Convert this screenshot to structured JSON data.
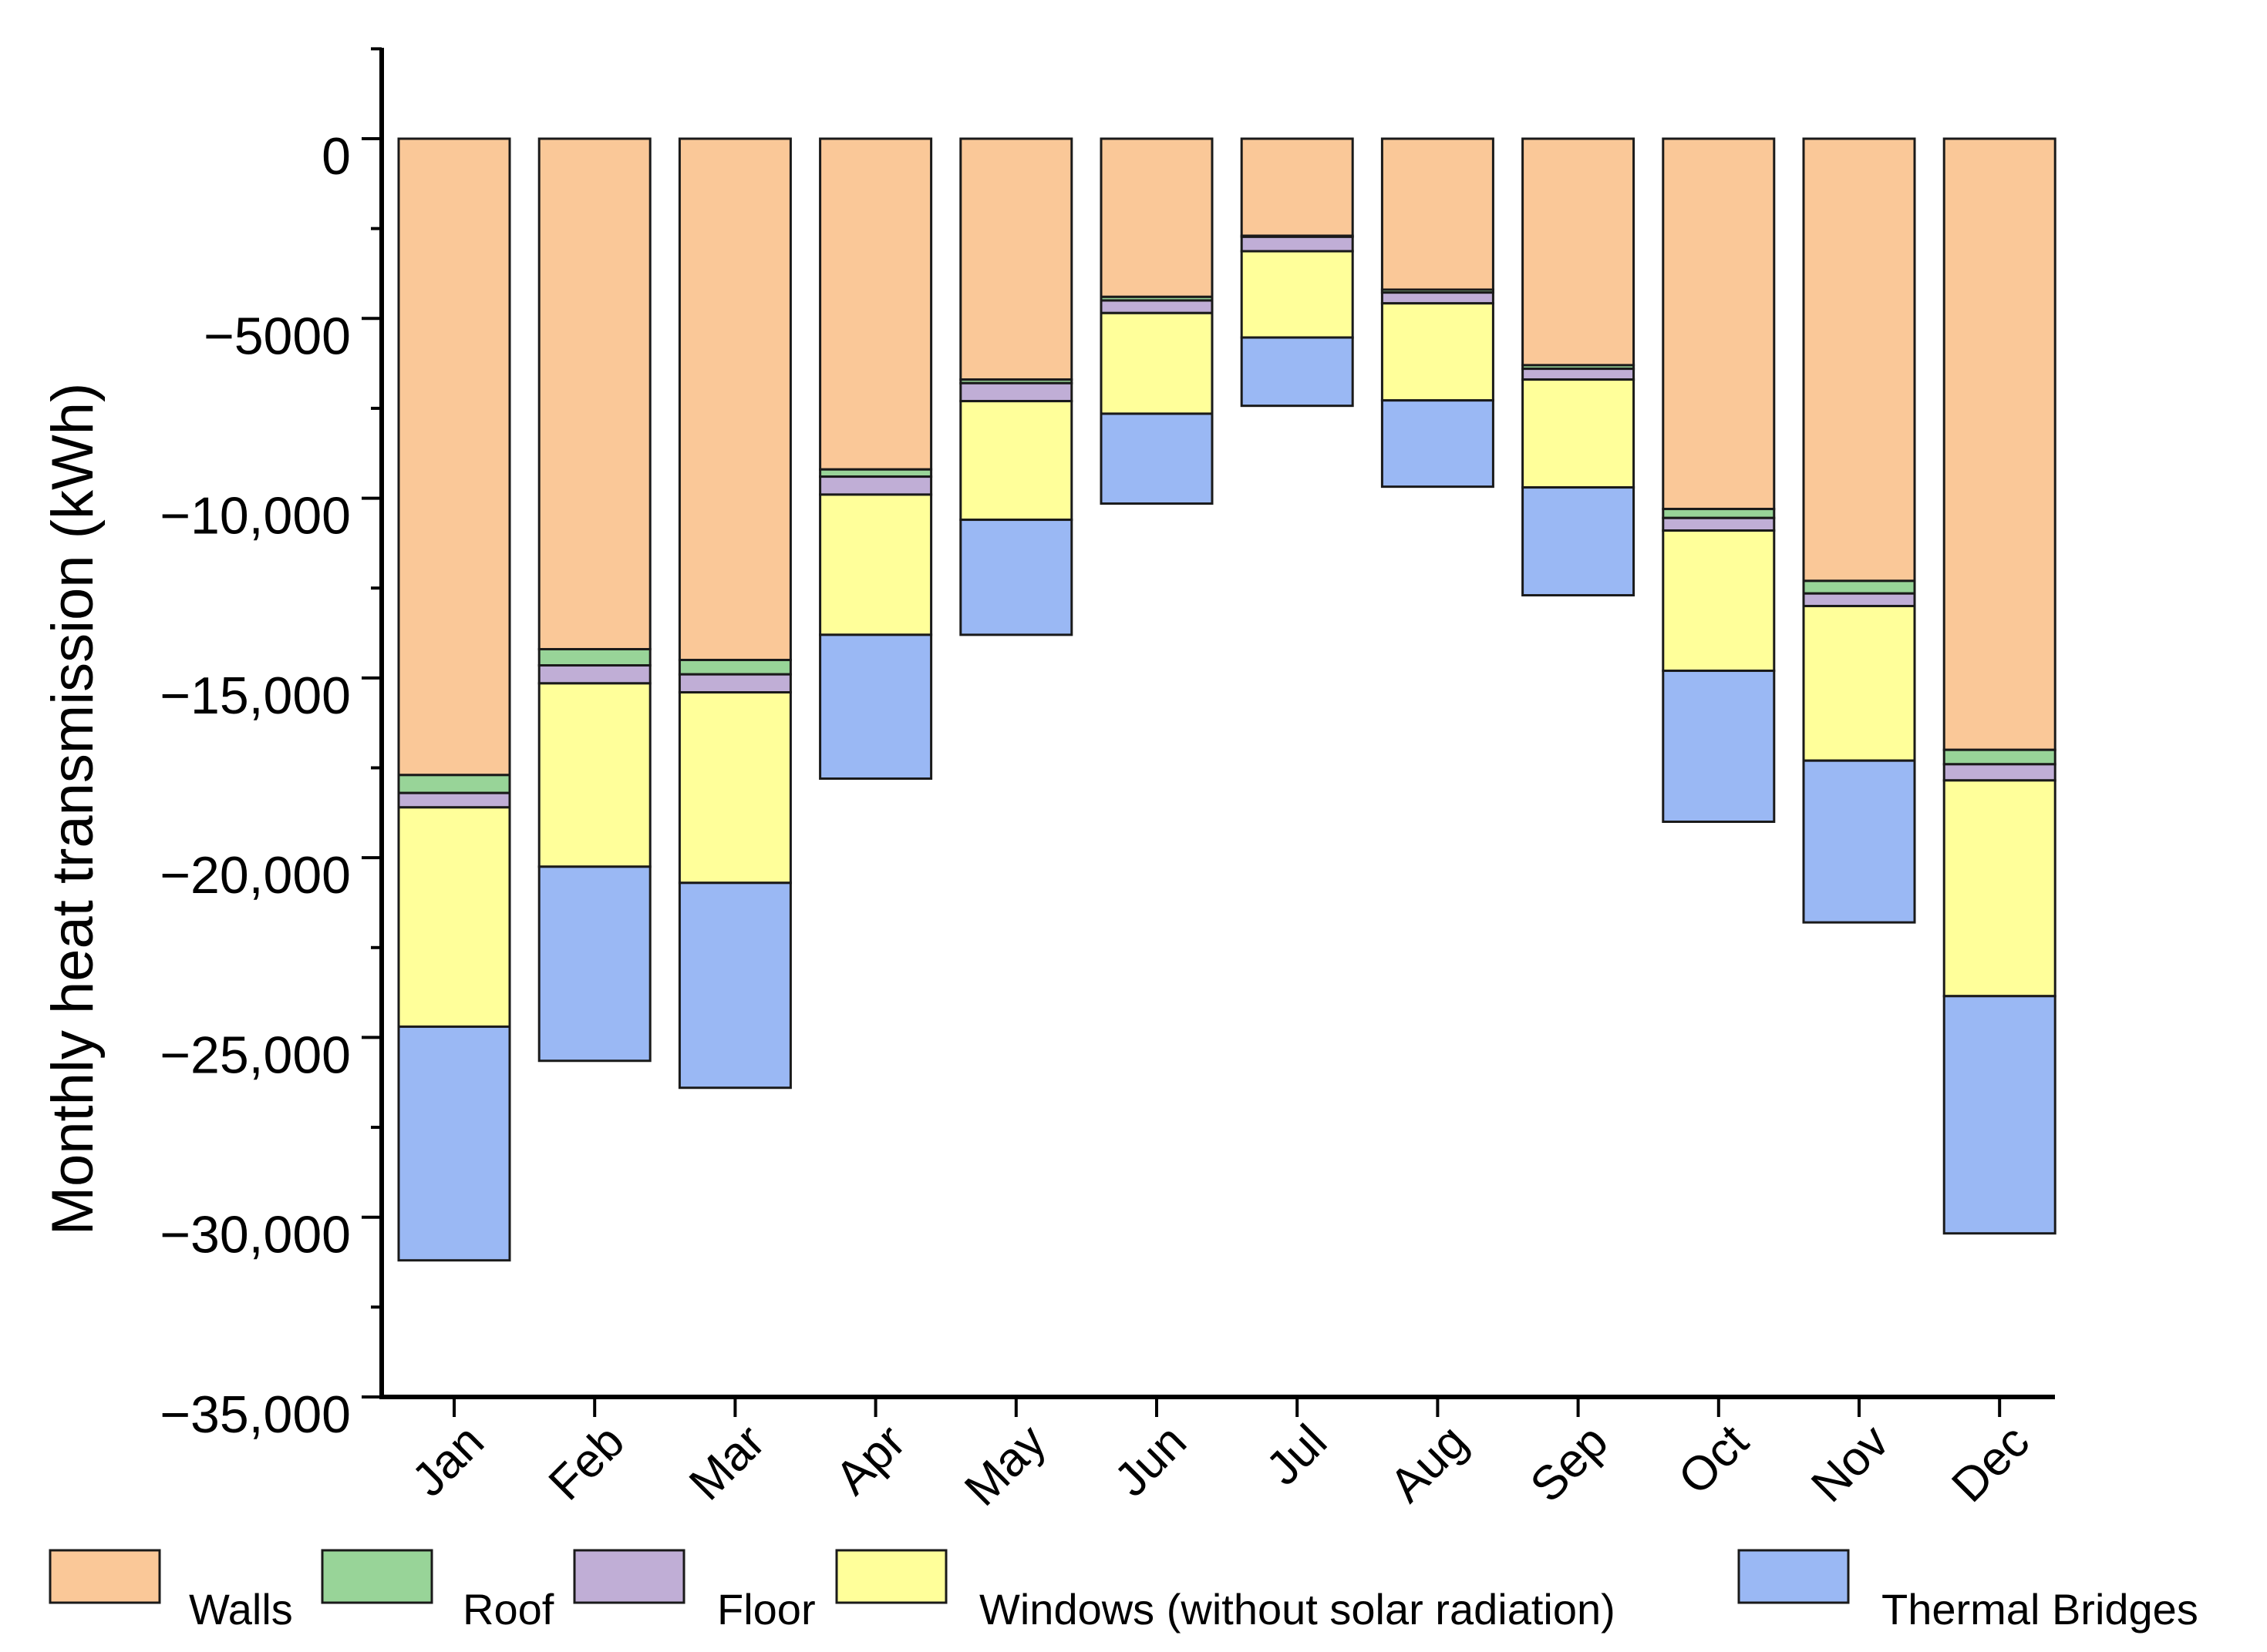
{
  "chart_data": {
    "type": "bar",
    "stacked": true,
    "title": "",
    "xlabel": "",
    "ylabel": "Monthly heat transmission (kWh)",
    "ylim": [
      -35000,
      2500
    ],
    "y_ticks": [
      0,
      -5000,
      -10000,
      -15000,
      -20000,
      -25000,
      -30000,
      -35000
    ],
    "y_tick_labels": [
      "0",
      "−5000",
      "−10,000",
      "−15,000",
      "−20,000",
      "−25,000",
      "−30,000",
      "−35,000"
    ],
    "categories": [
      "Jan",
      "Feb",
      "Mar",
      "Apr",
      "May",
      "Jun",
      "Jul",
      "Aug",
      "Sep",
      "Oct",
      "Nov",
      "Dec"
    ],
    "series": [
      {
        "name": "Walls",
        "color": "#fac898",
        "values": [
          -17700,
          -14200,
          -14500,
          -9200,
          -6700,
          -4400,
          -2700,
          -4200,
          -6300,
          -10300,
          -12300,
          -17000
        ]
      },
      {
        "name": "Roof",
        "color": "#98d498",
        "values": [
          -500,
          -450,
          -400,
          -200,
          -100,
          -100,
          -30,
          -80,
          -100,
          -250,
          -350,
          -400
        ]
      },
      {
        "name": "Floor",
        "color": "#c0aed6",
        "values": [
          -400,
          -500,
          -500,
          -500,
          -500,
          -350,
          -400,
          -300,
          -300,
          -350,
          -350,
          -450
        ]
      },
      {
        "name": "Windows (without solar radiation)",
        "color": "#ffff9a",
        "values": [
          -6100,
          -5100,
          -5300,
          -3900,
          -3300,
          -2800,
          -2400,
          -2700,
          -3000,
          -3900,
          -4300,
          -6000
        ]
      },
      {
        "name": "Thermal Bridges",
        "color": "#9ab8f4",
        "values": [
          -6500,
          -5400,
          -5700,
          -4000,
          -3200,
          -2500,
          -1900,
          -2400,
          -3000,
          -4200,
          -4500,
          -6600
        ]
      }
    ],
    "legend_position": "bottom",
    "grid": false
  }
}
